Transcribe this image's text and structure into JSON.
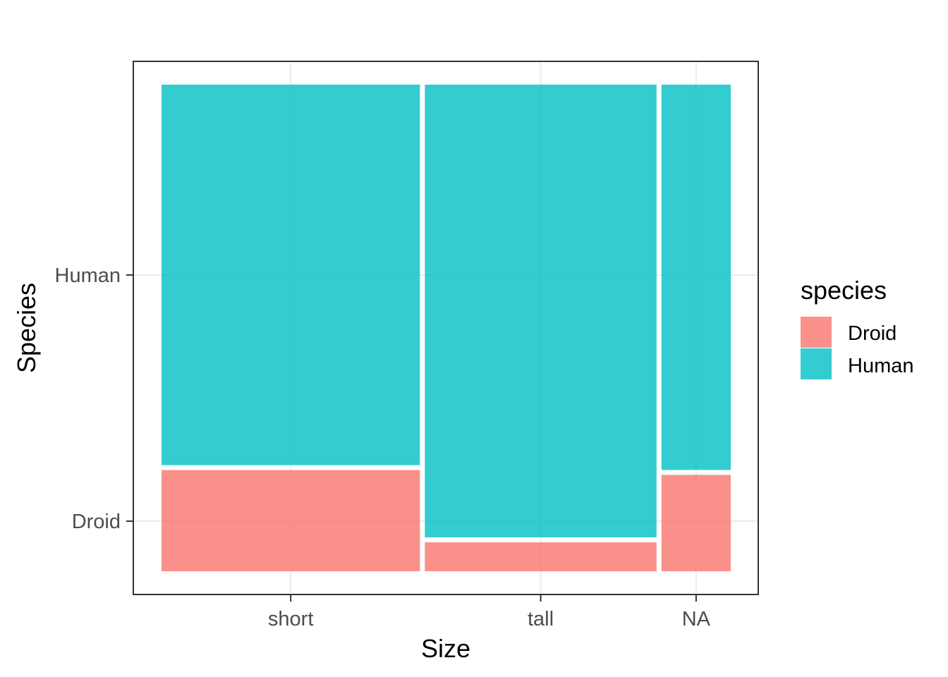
{
  "chart_data": {
    "type": "mosaic",
    "xlabel": "Size",
    "ylabel": "Species",
    "categories": [
      "short",
      "tall",
      "NA"
    ],
    "category_widths": [
      0.455,
      0.408,
      0.122
    ],
    "species_levels": [
      "Droid",
      "Human"
    ],
    "series": [
      {
        "name": "Droid",
        "values": [
          0.21,
          0.06,
          0.2
        ],
        "color": "#F8766D"
      },
      {
        "name": "Human",
        "values": [
          0.79,
          0.94,
          0.8
        ],
        "color": "#00BFC4"
      }
    ],
    "y_tick_labels": [
      "Droid",
      "Human"
    ],
    "legend": {
      "title": "species",
      "position": "right",
      "items": [
        {
          "label": "Droid",
          "color": "#F8766D"
        },
        {
          "label": "Human",
          "color": "#00BFC4"
        }
      ]
    },
    "grid": true,
    "theme": "bw"
  }
}
